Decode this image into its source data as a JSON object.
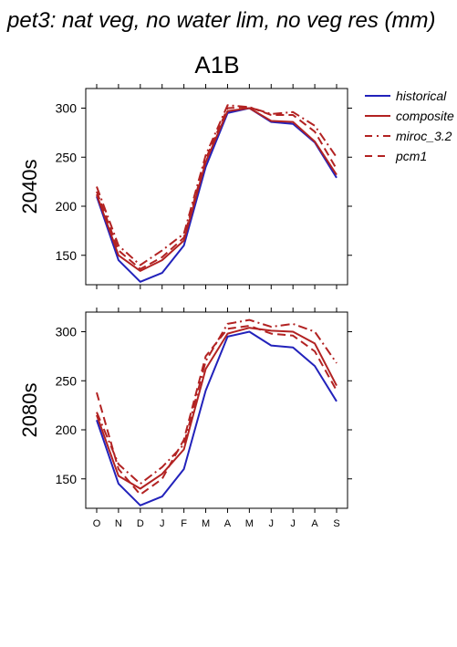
{
  "title": "pet3: nat veg, no water lim, no veg res (mm)",
  "scenario": "A1B",
  "colors": {
    "historical": "#2222bb",
    "model": "#b22222"
  },
  "chart_data": [
    {
      "type": "line",
      "panel_label": "2040s",
      "categories": [
        "O",
        "N",
        "D",
        "J",
        "F",
        "M",
        "A",
        "M",
        "J",
        "J",
        "A",
        "S"
      ],
      "ylim": [
        120,
        320
      ],
      "yticks": [
        150,
        200,
        250,
        300
      ],
      "grid": false,
      "legend_position": "right",
      "series": [
        {
          "name": "historical",
          "style": "solid",
          "color": "#2222bb",
          "values": [
            210,
            145,
            123,
            132,
            160,
            240,
            295,
            300,
            286,
            284,
            265,
            229
          ]
        },
        {
          "name": "composite",
          "style": "solid",
          "color": "#b22222",
          "values": [
            212,
            150,
            134,
            145,
            165,
            245,
            297,
            300,
            287,
            286,
            266,
            232
          ]
        },
        {
          "name": "miroc_3.2",
          "style": "dashdot",
          "color": "#b22222",
          "values": [
            220,
            160,
            140,
            155,
            172,
            252,
            303,
            301,
            294,
            296,
            282,
            250
          ]
        },
        {
          "name": "pcm1",
          "style": "dashed",
          "color": "#b22222",
          "values": [
            215,
            155,
            136,
            148,
            168,
            248,
            300,
            301,
            293,
            293,
            276,
            238
          ]
        }
      ]
    },
    {
      "type": "line",
      "panel_label": "2080s",
      "categories": [
        "O",
        "N",
        "D",
        "J",
        "F",
        "M",
        "A",
        "M",
        "J",
        "J",
        "A",
        "S"
      ],
      "ylim": [
        120,
        320
      ],
      "yticks": [
        150,
        200,
        250,
        300
      ],
      "grid": false,
      "legend_position": "right",
      "series": [
        {
          "name": "historical",
          "style": "solid",
          "color": "#2222bb",
          "values": [
            210,
            145,
            123,
            132,
            160,
            240,
            295,
            300,
            286,
            284,
            265,
            229
          ]
        },
        {
          "name": "composite",
          "style": "solid",
          "color": "#b22222",
          "values": [
            215,
            153,
            140,
            155,
            180,
            262,
            298,
            304,
            301,
            300,
            288,
            245
          ]
        },
        {
          "name": "miroc_3.2",
          "style": "dashdot",
          "color": "#b22222",
          "values": [
            218,
            165,
            145,
            162,
            185,
            270,
            308,
            312,
            305,
            308,
            300,
            268
          ]
        },
        {
          "name": "pcm1",
          "style": "dashed",
          "color": "#b22222",
          "values": [
            238,
            160,
            134,
            150,
            190,
            275,
            303,
            306,
            298,
            296,
            280,
            240
          ]
        }
      ]
    }
  ]
}
